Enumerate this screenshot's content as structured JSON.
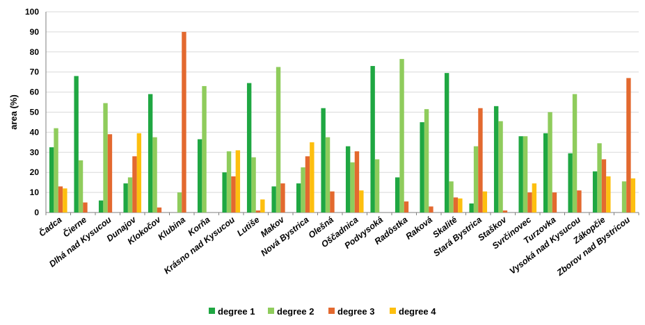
{
  "chart_data": {
    "type": "bar",
    "title": "",
    "xlabel": "",
    "ylabel": "area (%)",
    "ylim": [
      0,
      100
    ],
    "yticks": [
      0,
      10,
      20,
      30,
      40,
      50,
      60,
      70,
      80,
      90,
      100
    ],
    "grid": "horizontal",
    "legend_position": "bottom",
    "categories": [
      "Čadca",
      "Čierne",
      "Dlhá nad Kysucou",
      "Dunajov",
      "Klokočov",
      "Klubina",
      "Korňa",
      "Krásno nad Kysucou",
      "Lutiše",
      "Makov",
      "Nová Bystrica",
      "Olešná",
      "Oščadnica",
      "Podvysoká",
      "Radôstka",
      "Raková",
      "Skalité",
      "Stará Bystrica",
      "Staškov",
      "Svrčinovec",
      "Turzovka",
      "Vysoká nad Kysucou",
      "Zákopčie",
      "Zborov nad Bystricou"
    ],
    "series": [
      {
        "name": "degree 1",
        "color": "#1fa742",
        "values": [
          32.5,
          68,
          6,
          14.5,
          59,
          0,
          36.5,
          20,
          64.5,
          13,
          14.5,
          52,
          33,
          73,
          17.5,
          45,
          69.5,
          4.5,
          53,
          38,
          39.5,
          29.5,
          20.5,
          0
        ]
      },
      {
        "name": "degree 2",
        "color": "#8fcc5c",
        "values": [
          42,
          26,
          54.5,
          17.5,
          37.5,
          10,
          63,
          30.5,
          27.5,
          72.5,
          22.5,
          37.5,
          25,
          26.5,
          76.5,
          51.5,
          15.5,
          33,
          45.5,
          38,
          50,
          59,
          34.5,
          15.5
        ]
      },
      {
        "name": "degree 3",
        "color": "#e3692f",
        "values": [
          13,
          5,
          39,
          28,
          2.5,
          90,
          0,
          18,
          1,
          14.5,
          28,
          10.5,
          30.5,
          0,
          5.5,
          3,
          7.5,
          52,
          1,
          10,
          10,
          11,
          26.5,
          67
        ]
      },
      {
        "name": "degree 4",
        "color": "#fdbf0f",
        "values": [
          12,
          0,
          0,
          39.5,
          0,
          0,
          0,
          31,
          6.5,
          0,
          35,
          0,
          11,
          0,
          0,
          0,
          7,
          10.5,
          0,
          14.5,
          0,
          0,
          18,
          17
        ]
      }
    ]
  }
}
